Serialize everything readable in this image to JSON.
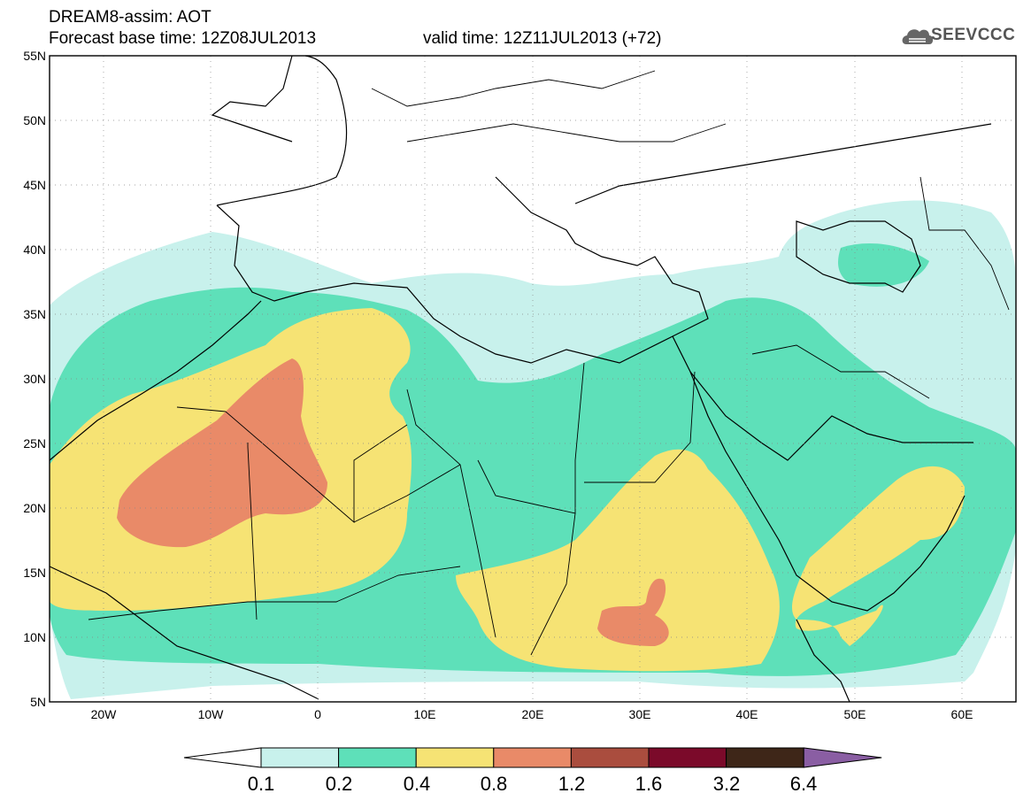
{
  "header": {
    "title_line1": "DREAM8-assim: AOT",
    "title_line2": "Forecast base time: 12Z08JUL2013",
    "valid_time": "valid time: 12Z11JUL2013 (+72)",
    "logo_text": "SEEVCCC"
  },
  "axes": {
    "lat_labels": [
      "55N",
      "50N",
      "45N",
      "40N",
      "35N",
      "30N",
      "25N",
      "20N",
      "15N",
      "10N",
      "5N"
    ],
    "lon_labels": [
      "20W",
      "10W",
      "0",
      "10E",
      "20E",
      "30E",
      "40E",
      "50E",
      "60E"
    ],
    "lat_range": [
      5,
      55
    ],
    "lon_range": [
      -25,
      65
    ]
  },
  "colorbar": {
    "ticks": [
      "0.1",
      "0.2",
      "0.4",
      "0.8",
      "1.2",
      "1.6",
      "3.2",
      "6.4"
    ],
    "colors": [
      "#ffffff",
      "#c8f1ec",
      "#5ee0b9",
      "#f6e374",
      "#e98a68",
      "#aa4d3e",
      "#7b0a2a",
      "#3e2618",
      "#8a5ea3"
    ]
  }
}
